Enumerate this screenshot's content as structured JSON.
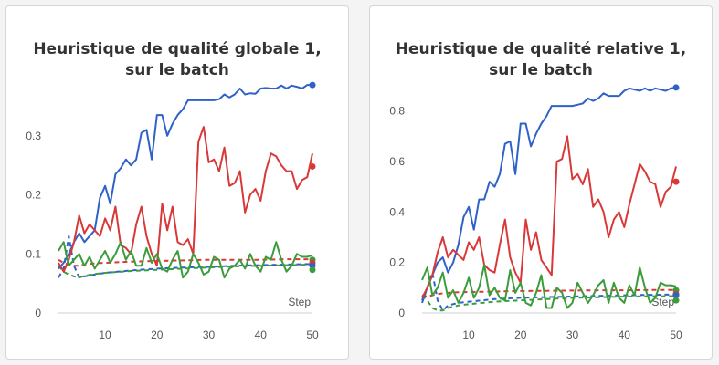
{
  "chart_data": [
    {
      "type": "line",
      "title": "Heuristique de qualité globale 1, sur le batch",
      "xlabel": "Step",
      "ylabel": "",
      "xlim": [
        1,
        50
      ],
      "ylim": [
        0,
        0.38
      ],
      "yticks": [
        0,
        0.1,
        0.2,
        0.3
      ],
      "ytick_labels": [
        "0",
        "0.1",
        "0.2",
        "0.3"
      ],
      "xticks": [
        10,
        20,
        30,
        40,
        50
      ],
      "xtick_labels": [
        "10",
        "20",
        "30",
        "40",
        "50"
      ],
      "grid": false,
      "series": [
        {
          "color": "#2f62c9",
          "style": "solid",
          "x": [
            1,
            2,
            3,
            4,
            5,
            6,
            7,
            8,
            9,
            10,
            11,
            12,
            13,
            14,
            15,
            16,
            17,
            18,
            19,
            20,
            21,
            22,
            23,
            24,
            25,
            26,
            27,
            28,
            29,
            30,
            31,
            32,
            33,
            34,
            35,
            36,
            37,
            38,
            39,
            40,
            41,
            42,
            43,
            44,
            45,
            46,
            47,
            48,
            49,
            50
          ],
          "values": [
            0.075,
            0.085,
            0.1,
            0.12,
            0.135,
            0.12,
            0.13,
            0.14,
            0.195,
            0.215,
            0.185,
            0.235,
            0.245,
            0.26,
            0.25,
            0.26,
            0.305,
            0.31,
            0.26,
            0.335,
            0.335,
            0.3,
            0.32,
            0.335,
            0.345,
            0.36,
            0.36,
            0.36,
            0.36,
            0.36,
            0.36,
            0.362,
            0.37,
            0.365,
            0.37,
            0.38,
            0.37,
            0.372,
            0.371,
            0.38,
            0.381,
            0.38,
            0.38,
            0.385,
            0.38,
            0.385,
            0.383,
            0.38,
            0.386,
            0.386
          ]
        },
        {
          "color": "#d93838",
          "style": "solid",
          "x": [
            1,
            2,
            3,
            4,
            5,
            6,
            7,
            8,
            9,
            10,
            11,
            12,
            13,
            14,
            15,
            16,
            17,
            18,
            19,
            20,
            21,
            22,
            23,
            24,
            25,
            26,
            27,
            28,
            29,
            30,
            31,
            32,
            33,
            34,
            35,
            36,
            37,
            38,
            39,
            40,
            41,
            42,
            43,
            44,
            45,
            46,
            47,
            48,
            49,
            50
          ],
          "values": [
            0.085,
            0.07,
            0.09,
            0.12,
            0.165,
            0.135,
            0.15,
            0.14,
            0.13,
            0.16,
            0.14,
            0.18,
            0.115,
            0.11,
            0.1,
            0.15,
            0.18,
            0.13,
            0.1,
            0.08,
            0.185,
            0.14,
            0.18,
            0.12,
            0.115,
            0.125,
            0.1,
            0.29,
            0.315,
            0.255,
            0.26,
            0.24,
            0.28,
            0.215,
            0.22,
            0.24,
            0.17,
            0.2,
            0.21,
            0.19,
            0.24,
            0.27,
            0.265,
            0.25,
            0.24,
            0.24,
            0.21,
            0.225,
            0.23,
            0.27
          ]
        },
        {
          "color": "#3b9c3b",
          "style": "solid",
          "x": [
            1,
            2,
            3,
            4,
            5,
            6,
            7,
            8,
            9,
            10,
            11,
            12,
            13,
            14,
            15,
            16,
            17,
            18,
            19,
            20,
            21,
            22,
            23,
            24,
            25,
            26,
            27,
            28,
            29,
            30,
            31,
            32,
            33,
            34,
            35,
            36,
            37,
            38,
            39,
            40,
            41,
            42,
            43,
            44,
            45,
            46,
            47,
            48,
            49,
            50
          ],
          "values": [
            0.105,
            0.12,
            0.08,
            0.09,
            0.1,
            0.08,
            0.095,
            0.075,
            0.09,
            0.105,
            0.085,
            0.1,
            0.12,
            0.09,
            0.105,
            0.08,
            0.08,
            0.11,
            0.085,
            0.1,
            0.075,
            0.07,
            0.09,
            0.105,
            0.06,
            0.07,
            0.1,
            0.085,
            0.065,
            0.07,
            0.095,
            0.09,
            0.06,
            0.075,
            0.08,
            0.09,
            0.075,
            0.1,
            0.08,
            0.07,
            0.095,
            0.09,
            0.12,
            0.09,
            0.07,
            0.08,
            0.1,
            0.095,
            0.095,
            0.098
          ]
        },
        {
          "color": "#d93838",
          "style": "dashed",
          "x": [
            1,
            2,
            3,
            4,
            5,
            6,
            8,
            10,
            15,
            20,
            25,
            30,
            35,
            40,
            45,
            50
          ],
          "values": [
            0.09,
            0.085,
            0.082,
            0.08,
            0.08,
            0.082,
            0.084,
            0.085,
            0.087,
            0.088,
            0.089,
            0.09,
            0.09,
            0.09,
            0.091,
            0.091
          ]
        },
        {
          "color": "#2f62c9",
          "style": "dashed",
          "x": [
            1,
            2,
            3,
            4,
            5,
            6,
            8,
            10,
            15,
            20,
            25,
            30,
            35,
            40,
            45,
            50
          ],
          "values": [
            0.06,
            0.075,
            0.13,
            0.08,
            0.06,
            0.062,
            0.065,
            0.068,
            0.072,
            0.075,
            0.077,
            0.078,
            0.08,
            0.081,
            0.082,
            0.083
          ]
        },
        {
          "color": "#3b9c3b",
          "style": "dashed",
          "x": [
            1,
            2,
            3,
            4,
            5,
            6,
            8,
            10,
            15,
            20,
            25,
            30,
            35,
            40,
            45,
            50
          ],
          "values": [
            0.08,
            0.07,
            0.065,
            0.062,
            0.06,
            0.063,
            0.066,
            0.068,
            0.071,
            0.073,
            0.075,
            0.077,
            0.079,
            0.08,
            0.081,
            0.082
          ]
        }
      ],
      "end_markers": [
        0.386,
        0.248,
        0.09,
        0.085,
        0.08,
        0.073
      ]
    },
    {
      "type": "line",
      "title": "Heuristique de qualité relative 1, sur le batch",
      "xlabel": "Step",
      "ylabel": "",
      "xlim": [
        1,
        50
      ],
      "ylim": [
        0,
        0.9
      ],
      "yticks": [
        0,
        0.2,
        0.4,
        0.6,
        0.8
      ],
      "ytick_labels": [
        "0",
        "0.2",
        "0.4",
        "0.6",
        "0.8"
      ],
      "xticks": [
        10,
        20,
        30,
        40,
        50
      ],
      "xtick_labels": [
        "10",
        "20",
        "30",
        "40",
        "50"
      ],
      "grid": false,
      "series": [
        {
          "color": "#2f62c9",
          "style": "solid",
          "x": [
            1,
            2,
            3,
            4,
            5,
            6,
            7,
            8,
            9,
            10,
            11,
            12,
            13,
            14,
            15,
            16,
            17,
            18,
            19,
            20,
            21,
            22,
            23,
            24,
            25,
            26,
            27,
            28,
            29,
            30,
            31,
            32,
            33,
            34,
            35,
            36,
            37,
            38,
            39,
            40,
            41,
            42,
            43,
            44,
            45,
            46,
            47,
            48,
            49,
            50
          ],
          "values": [
            0.05,
            0.1,
            0.15,
            0.2,
            0.22,
            0.16,
            0.2,
            0.27,
            0.38,
            0.42,
            0.33,
            0.45,
            0.45,
            0.52,
            0.5,
            0.55,
            0.67,
            0.68,
            0.55,
            0.75,
            0.75,
            0.66,
            0.71,
            0.75,
            0.78,
            0.82,
            0.82,
            0.82,
            0.82,
            0.82,
            0.825,
            0.83,
            0.85,
            0.84,
            0.85,
            0.87,
            0.86,
            0.86,
            0.86,
            0.88,
            0.89,
            0.885,
            0.88,
            0.89,
            0.88,
            0.89,
            0.885,
            0.88,
            0.89,
            0.893
          ]
        },
        {
          "color": "#d93838",
          "style": "solid",
          "x": [
            1,
            2,
            3,
            4,
            5,
            6,
            7,
            8,
            9,
            10,
            11,
            12,
            13,
            14,
            15,
            16,
            17,
            18,
            19,
            20,
            21,
            22,
            23,
            24,
            25,
            26,
            27,
            28,
            29,
            30,
            31,
            32,
            33,
            34,
            35,
            36,
            37,
            38,
            39,
            40,
            41,
            42,
            43,
            44,
            45,
            46,
            47,
            48,
            49,
            50
          ],
          "values": [
            0.06,
            0.1,
            0.15,
            0.24,
            0.3,
            0.22,
            0.25,
            0.23,
            0.21,
            0.28,
            0.25,
            0.3,
            0.19,
            0.17,
            0.16,
            0.27,
            0.37,
            0.22,
            0.16,
            0.12,
            0.37,
            0.25,
            0.32,
            0.21,
            0.18,
            0.15,
            0.6,
            0.61,
            0.7,
            0.53,
            0.55,
            0.51,
            0.57,
            0.42,
            0.45,
            0.4,
            0.3,
            0.37,
            0.4,
            0.34,
            0.43,
            0.51,
            0.59,
            0.56,
            0.52,
            0.51,
            0.42,
            0.48,
            0.5,
            0.58
          ]
        },
        {
          "color": "#3b9c3b",
          "style": "solid",
          "x": [
            1,
            2,
            3,
            4,
            5,
            6,
            7,
            8,
            9,
            10,
            11,
            12,
            13,
            14,
            15,
            16,
            17,
            18,
            19,
            20,
            21,
            22,
            23,
            24,
            25,
            26,
            27,
            28,
            29,
            30,
            31,
            32,
            33,
            34,
            35,
            36,
            37,
            38,
            39,
            40,
            41,
            42,
            43,
            44,
            45,
            46,
            47,
            48,
            49,
            50
          ],
          "values": [
            0.13,
            0.18,
            0.07,
            0.1,
            0.16,
            0.06,
            0.09,
            0.04,
            0.08,
            0.14,
            0.06,
            0.1,
            0.19,
            0.07,
            0.1,
            0.06,
            0.05,
            0.17,
            0.08,
            0.12,
            0.04,
            0.03,
            0.08,
            0.15,
            0.02,
            0.02,
            0.1,
            0.08,
            0.02,
            0.04,
            0.12,
            0.08,
            0.04,
            0.07,
            0.11,
            0.13,
            0.04,
            0.12,
            0.06,
            0.04,
            0.11,
            0.07,
            0.18,
            0.1,
            0.04,
            0.06,
            0.12,
            0.11,
            0.11,
            0.105
          ]
        },
        {
          "color": "#d93838",
          "style": "dashed",
          "x": [
            1,
            2,
            3,
            4,
            5,
            6,
            8,
            10,
            15,
            20,
            25,
            30,
            35,
            40,
            45,
            50
          ],
          "values": [
            0.07,
            0.065,
            0.07,
            0.075,
            0.078,
            0.08,
            0.082,
            0.083,
            0.085,
            0.087,
            0.088,
            0.089,
            0.09,
            0.09,
            0.091,
            0.091
          ]
        },
        {
          "color": "#2f62c9",
          "style": "dashed",
          "x": [
            1,
            2,
            3,
            4,
            5,
            6,
            8,
            10,
            15,
            20,
            25,
            30,
            35,
            40,
            45,
            50
          ],
          "values": [
            0.04,
            0.1,
            0.16,
            0.05,
            0.01,
            0.03,
            0.04,
            0.045,
            0.055,
            0.06,
            0.063,
            0.065,
            0.068,
            0.07,
            0.072,
            0.073
          ]
        },
        {
          "color": "#3b9c3b",
          "style": "dashed",
          "x": [
            1,
            2,
            3,
            4,
            5,
            6,
            8,
            10,
            15,
            20,
            25,
            30,
            35,
            40,
            45,
            50
          ],
          "values": [
            0.07,
            0.05,
            0.02,
            0.01,
            0.01,
            0.02,
            0.03,
            0.035,
            0.045,
            0.05,
            0.055,
            0.06,
            0.062,
            0.065,
            0.066,
            0.067
          ]
        }
      ],
      "end_markers": [
        0.893,
        0.52,
        0.09,
        0.075,
        0.07,
        0.05
      ]
    }
  ]
}
